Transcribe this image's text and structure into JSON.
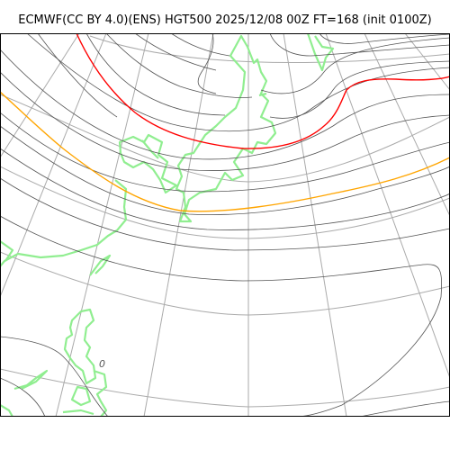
{
  "title": "ECMWF(CC BY 4.0)(ENS) HGT500 2025/12/08 00Z FT=168 (init 0100Z)",
  "contour_label": "0",
  "colors": {
    "contour": "#555555",
    "grid": "#aaaaaa",
    "coast": "#90ee90",
    "highlight_red": "#ff0000",
    "highlight_orange": "#ffa500",
    "frame": "#000000"
  }
}
